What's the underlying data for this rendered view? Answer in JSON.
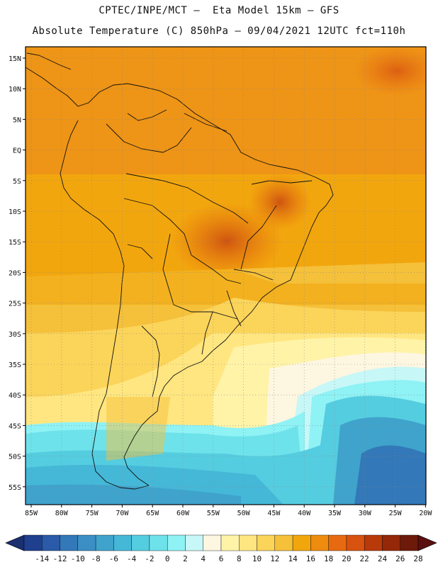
{
  "header": {
    "line1": "CPTEC/INPE/MCT –  Eta Model 15km – GFS",
    "line2": "Absolute Temperature (C) 850hPa – 09/04/2021 12UTC fct=110h"
  },
  "map": {
    "lat_labels": [
      "15N",
      "10N",
      "5N",
      "EQ",
      "5S",
      "10S",
      "15S",
      "20S",
      "25S",
      "30S",
      "35S",
      "40S",
      "45S",
      "50S",
      "55S"
    ],
    "lon_labels": [
      "85W",
      "80W",
      "75W",
      "70W",
      "65W",
      "60W",
      "55W",
      "50W",
      "45W",
      "40W",
      "35W",
      "30W",
      "25W",
      "20W"
    ]
  },
  "colorbar": {
    "labels": [
      "-14",
      "-12",
      "-10",
      "-8",
      "-6",
      "-4",
      "-2",
      "0",
      "2",
      "4",
      "6",
      "8",
      "10",
      "12",
      "14",
      "16",
      "18",
      "20",
      "22",
      "24",
      "26",
      "28"
    ],
    "colors": [
      "#1f3f8f",
      "#2a5aa8",
      "#3378b8",
      "#3b8fc4",
      "#3fa3cc",
      "#45b8d8",
      "#55cde0",
      "#6ee2ea",
      "#8ff2f5",
      "#c8f7f7",
      "#fdf6e0",
      "#fff3a8",
      "#ffe680",
      "#fbd45a",
      "#f5c03a",
      "#f2a60e",
      "#ee8c10",
      "#e86a10",
      "#d85210",
      "#b83a0a",
      "#942808",
      "#6e1a0a"
    ]
  }
}
